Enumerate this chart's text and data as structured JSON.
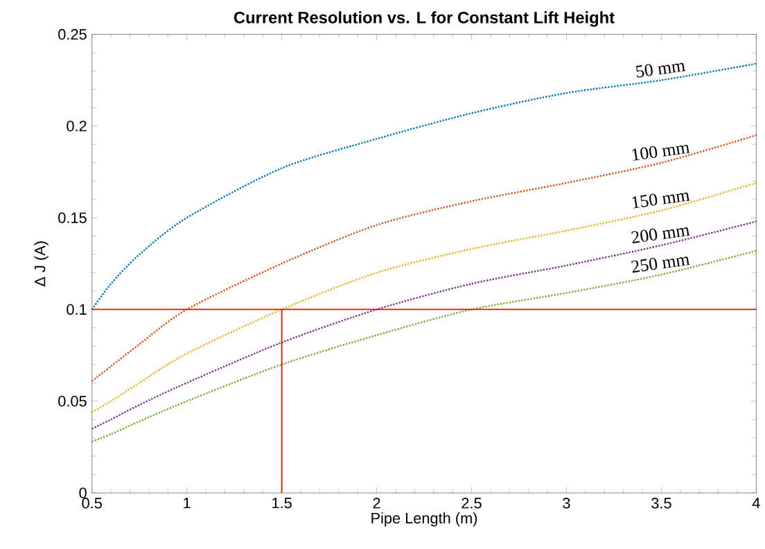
{
  "chart_data": {
    "type": "line",
    "title": "Current Resolution vs. L for Constant Lift Height",
    "xlabel": "Pipe Length (m)",
    "ylabel": "Δ J (A)",
    "x": [
      0.5,
      0.6,
      0.75,
      1,
      1.5,
      2,
      2.5,
      3,
      3.5,
      4
    ],
    "series": [
      {
        "name": "50 mm",
        "color": "#0072bd",
        "line_style": "dotted",
        "values": [
          0.1,
          0.114,
          0.13,
          0.15,
          0.177,
          0.193,
          0.207,
          0.218,
          0.225,
          0.234
        ]
      },
      {
        "name": "100 mm",
        "color": "#d95319",
        "line_style": "dotted",
        "values": [
          0.061,
          0.069,
          0.081,
          0.1,
          0.125,
          0.146,
          0.159,
          0.169,
          0.18,
          0.195
        ]
      },
      {
        "name": "150 mm",
        "color": "#edb120",
        "line_style": "dotted",
        "values": [
          0.044,
          0.05,
          0.06,
          0.076,
          0.1,
          0.12,
          0.133,
          0.143,
          0.154,
          0.169
        ]
      },
      {
        "name": "200 mm",
        "color": "#7e2f8e",
        "line_style": "dotted",
        "values": [
          0.035,
          0.04,
          0.048,
          0.06,
          0.082,
          0.1,
          0.114,
          0.124,
          0.135,
          0.148
        ]
      },
      {
        "name": "250 mm",
        "color": "#77ac30",
        "line_style": "dotted",
        "values": [
          0.028,
          0.032,
          0.039,
          0.05,
          0.07,
          0.086,
          0.1,
          0.109,
          0.119,
          0.132
        ]
      },
      {
        "type": "line",
        "color": "#ff0000",
        "line_style": "solid",
        "x": [
          1.5,
          1.5
        ],
        "values": [
          0,
          0.1
        ]
      }
    ],
    "ref_lines": [
      {
        "axis": "y",
        "value": 0.1,
        "color": "#ff0000",
        "line_style": "solid"
      }
    ],
    "xlim": [
      0.5,
      4
    ],
    "ylim": [
      0,
      0.25
    ],
    "xticks": [
      0.5,
      1,
      1.5,
      2,
      2.5,
      3,
      3.5,
      4
    ],
    "yticks": [
      0,
      0.05,
      0.1,
      0.15,
      0.2,
      0.25
    ],
    "grid": false
  }
}
